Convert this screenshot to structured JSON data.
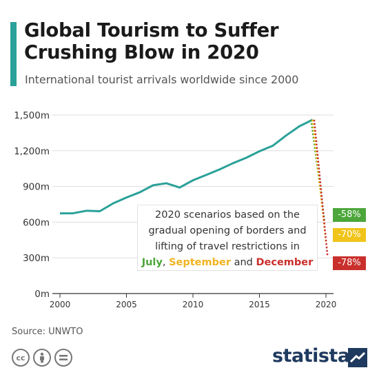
{
  "header": {
    "title": "Global Tourism to Suffer Crushing Blow in 2020",
    "subtitle": "International tourist arrivals worldwide since 2000"
  },
  "chart_data": {
    "type": "line",
    "x": [
      2000,
      2001,
      2002,
      2003,
      2004,
      2005,
      2006,
      2007,
      2008,
      2009,
      2010,
      2011,
      2012,
      2013,
      2014,
      2015,
      2016,
      2017,
      2018,
      2019
    ],
    "series": [
      {
        "values": [
          674,
          675,
          696,
          692,
          758,
          807,
          851,
          910,
          927,
          891,
          952,
          997,
          1043,
          1095,
          1141,
          1196,
          1242,
          1328,
          1406,
          1461
        ]
      }
    ],
    "scenarios": [
      {
        "label": "July",
        "change": "-58%",
        "value_2020": 614,
        "color": "#4ca63a"
      },
      {
        "label": "September",
        "change": "-70%",
        "value_2020": 438,
        "color": "#f0c419"
      },
      {
        "label": "December",
        "change": "-78%",
        "value_2020": 321,
        "color": "#c9302c"
      }
    ],
    "xlim": [
      2000,
      2020
    ],
    "ylim": [
      0,
      1500
    ],
    "y_ticks": [
      "0m",
      "300m",
      "600m",
      "900m",
      "1,200m",
      "1,500m"
    ],
    "x_ticks": [
      "2000",
      "2005",
      "2010",
      "2015",
      "2020"
    ],
    "grid": true,
    "line_color": "#2aa198"
  },
  "annotation": {
    "line1": "2020 scenarios based on the",
    "line2": "gradual opening of borders and",
    "line3": "lifting of travel restrictions in",
    "july": "July",
    "comma": ", ",
    "september": "September",
    "and": " and ",
    "december": "December"
  },
  "badges": {
    "green": "-58%",
    "yellow": "-70%",
    "red": "-78%"
  },
  "footer": {
    "source": "Source: UNWTO",
    "brand": "statista",
    "cc_icons": [
      "cc-icon",
      "attribution-icon",
      "no-derivatives-icon"
    ]
  }
}
